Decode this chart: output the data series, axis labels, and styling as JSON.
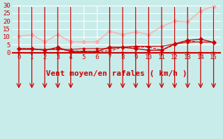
{
  "background_color": "#c8ecea",
  "grid_color": "#ffffff",
  "xlabel": "Vent moyen/en rafales ( km/h )",
  "xlabel_color": "#cc0000",
  "xlabel_fontsize": 8,
  "tick_color": "#cc0000",
  "xlim": [
    -0.5,
    15.5
  ],
  "ylim": [
    0,
    30
  ],
  "xticks": [
    0,
    1,
    2,
    3,
    4,
    5,
    6,
    7,
    8,
    9,
    10,
    11,
    12,
    13,
    14,
    15
  ],
  "yticks": [
    0,
    5,
    10,
    15,
    20,
    25,
    30
  ],
  "x": [
    0,
    1,
    2,
    3,
    4,
    5,
    6,
    7,
    8,
    9,
    10,
    11,
    12,
    13,
    14,
    15
  ],
  "series": [
    {
      "y": [
        10.3,
        11.3,
        6.8,
        11.5,
        6.8,
        6.8,
        6.8,
        13.5,
        11.5,
        13.2,
        11.5,
        16.5,
        20.0,
        19.5,
        26.5,
        29.5
      ],
      "color": "#ffaaaa",
      "marker": "D",
      "markersize": 3,
      "linewidth": 1.0
    },
    {
      "y": [
        2.5,
        2.5,
        1.5,
        3.3,
        0.7,
        0.7,
        0.7,
        3.5,
        3.3,
        2.5,
        1.5,
        1.5,
        5.5,
        7.8,
        8.5,
        6.5
      ],
      "color": "#cc0000",
      "marker": "D",
      "markersize": 3,
      "linewidth": 1.0
    },
    {
      "y": [
        2.5,
        2.3,
        1.8,
        2.3,
        1.0,
        0.8,
        0.8,
        1.0,
        3.5,
        3.5,
        3.5,
        1.5,
        5.0,
        7.5,
        6.5,
        6.8
      ],
      "color": "#cc0000",
      "marker": "D",
      "markersize": 2,
      "linewidth": 0.8,
      "linestyle": "--"
    },
    {
      "y": [
        2.0,
        2.0,
        2.0,
        2.0,
        2.0,
        2.5,
        2.5,
        2.5,
        3.5,
        4.0,
        4.0,
        4.0,
        5.5,
        6.5,
        6.8,
        6.5
      ],
      "color": "#cc0000",
      "marker": "D",
      "markersize": 2,
      "linewidth": 0.8
    }
  ],
  "arrows_x": [
    0,
    1,
    2,
    3,
    4,
    7,
    8,
    9,
    10,
    11,
    12,
    13,
    14,
    15
  ],
  "hline_color": "#cc0000",
  "arrow_color": "#cc0000"
}
